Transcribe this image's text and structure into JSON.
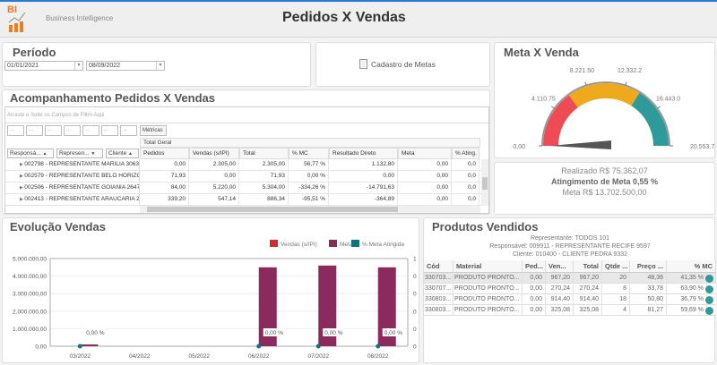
{
  "header": {
    "logo_text": "BI",
    "subtitle": "Business Intelligence",
    "title": "Pedidos X Vendas"
  },
  "periodo": {
    "title": "Período",
    "start_date": "01/01/2021",
    "end_date": "08/09/2022"
  },
  "cadastro": {
    "label": "Cadastro de Metas",
    "icon": "document-icon"
  },
  "acomp": {
    "title": "Acompanhamento Pedidos X Vendas",
    "filter_placeholder": "Arraste e Solte os Campos de Filtro Aqui",
    "field_buttons": [
      "...",
      "...",
      "...",
      "...",
      "...",
      "...",
      "..."
    ],
    "metricas": "Métricas",
    "total_geral": "Total Geral",
    "row_headers": [
      "Responsá...",
      "Represen...",
      "Cliente"
    ],
    "columns": [
      "Pedidos",
      "Vendas (s/IPI)",
      "Total",
      "% MC",
      "Resultado Direto",
      "Meta",
      "% Ating. M"
    ],
    "rows": [
      {
        "label": "002798 - REPRESENTANTE MARILIA 3063",
        "values": [
          "0,00",
          "2.305,00",
          "2.305,00",
          "56,77 %",
          "1.132,80",
          "0,00",
          "0,0"
        ]
      },
      {
        "label": "002579 - REPRESENTANTE BELO HORIZON...",
        "values": [
          "71,93",
          "0,00",
          "71,93",
          "0,00 %",
          "0,00",
          "0,00",
          "0,0"
        ]
      },
      {
        "label": "002506 - REPRESENTANTE GOIANIA 2647",
        "values": [
          "84,00",
          "5.220,00",
          "5.304,00",
          "-334,26 %",
          "-14.791,63",
          "0,00",
          "0,0"
        ]
      },
      {
        "label": "002413 - REPRESENTANTE ARAUCARIA 2186",
        "values": [
          "339,20",
          "547,14",
          "886,34",
          "-95,51 %",
          "-364,89",
          "0,00",
          "0,0"
        ]
      }
    ]
  },
  "meta_venda": {
    "title": "Meta X Venda",
    "ticks": [
      "0,00",
      "4.110.75",
      "8.221.50",
      "12.332.2",
      "16.443.0",
      "20.553.7"
    ],
    "colors": [
      "#ef4b55",
      "#eeaa1c",
      "#2e9a9a"
    ],
    "needle_fraction": 0.0
  },
  "resumo": {
    "realizado": "Realizado R$ 75.362,07",
    "atingimento": "Atingimento de Meta 0,55 %",
    "meta": "Meta R$ 13.702.500,00"
  },
  "chart_data": {
    "type": "bar",
    "title": "Evolução Vendas",
    "categories": [
      "03/2022",
      "04/2022",
      "05/2022",
      "06/2022",
      "07/2022",
      "08/2022"
    ],
    "series": [
      {
        "name": "Vendas (s/IPI)",
        "color": "#d12b2b",
        "values": [
          0,
          0,
          0,
          0,
          0,
          0
        ]
      },
      {
        "name": "Meta",
        "color": "#8b2a5c",
        "values": [
          100000,
          0,
          0,
          4500000,
          4600000,
          4500000
        ]
      },
      {
        "name": "% Meta Atingida",
        "color": "#0f7380",
        "values": [
          0,
          null,
          null,
          0,
          0,
          0
        ]
      }
    ],
    "point_labels": [
      "0,00 %",
      "",
      "",
      "0,00 %",
      "0,00 %",
      "0,00 %"
    ],
    "ylim": [
      0,
      5000000
    ],
    "yticks": [
      "0,00",
      "1.000.000,00",
      "2.000.000,00",
      "3.000.000,00",
      "4.000.000,00",
      "5.000.000,00"
    ],
    "y2ticks": [
      "0",
      "0",
      "0",
      "0",
      "0",
      "1"
    ],
    "legend": "top-right"
  },
  "produtos": {
    "title": "Produtos Vendidos",
    "info": [
      "Representante: TODOS   101",
      "Responsável: 009911 - REPRESENTANTE RECIFE 9597",
      "Cliente: 010400 - CLIENTE PEDRA 9332"
    ],
    "columns": [
      "Cód",
      "Material",
      "Ped...",
      "Ven...",
      "Total",
      "Qtde ...",
      "Preço ...",
      "% MC"
    ],
    "rows": [
      [
        "330703...",
        "PRODUTO PRONTO...",
        "0,00",
        "967,20",
        "967,20",
        "20",
        "48,36",
        "41,35 %"
      ],
      [
        "330707...",
        "PRODUTO PRONTO...",
        "0,00",
        "270,24",
        "270,24",
        "8",
        "33,78",
        "63,90 %"
      ],
      [
        "330803...",
        "PRODUTO PRONTO...",
        "0,00",
        "914,40",
        "914,40",
        "18",
        "50,80",
        "36,79 %"
      ],
      [
        "330803...",
        "PRODUTO PRONTO...",
        "0,00",
        "325,08",
        "325,08",
        "4",
        "81,27",
        "59,69 %"
      ]
    ]
  }
}
